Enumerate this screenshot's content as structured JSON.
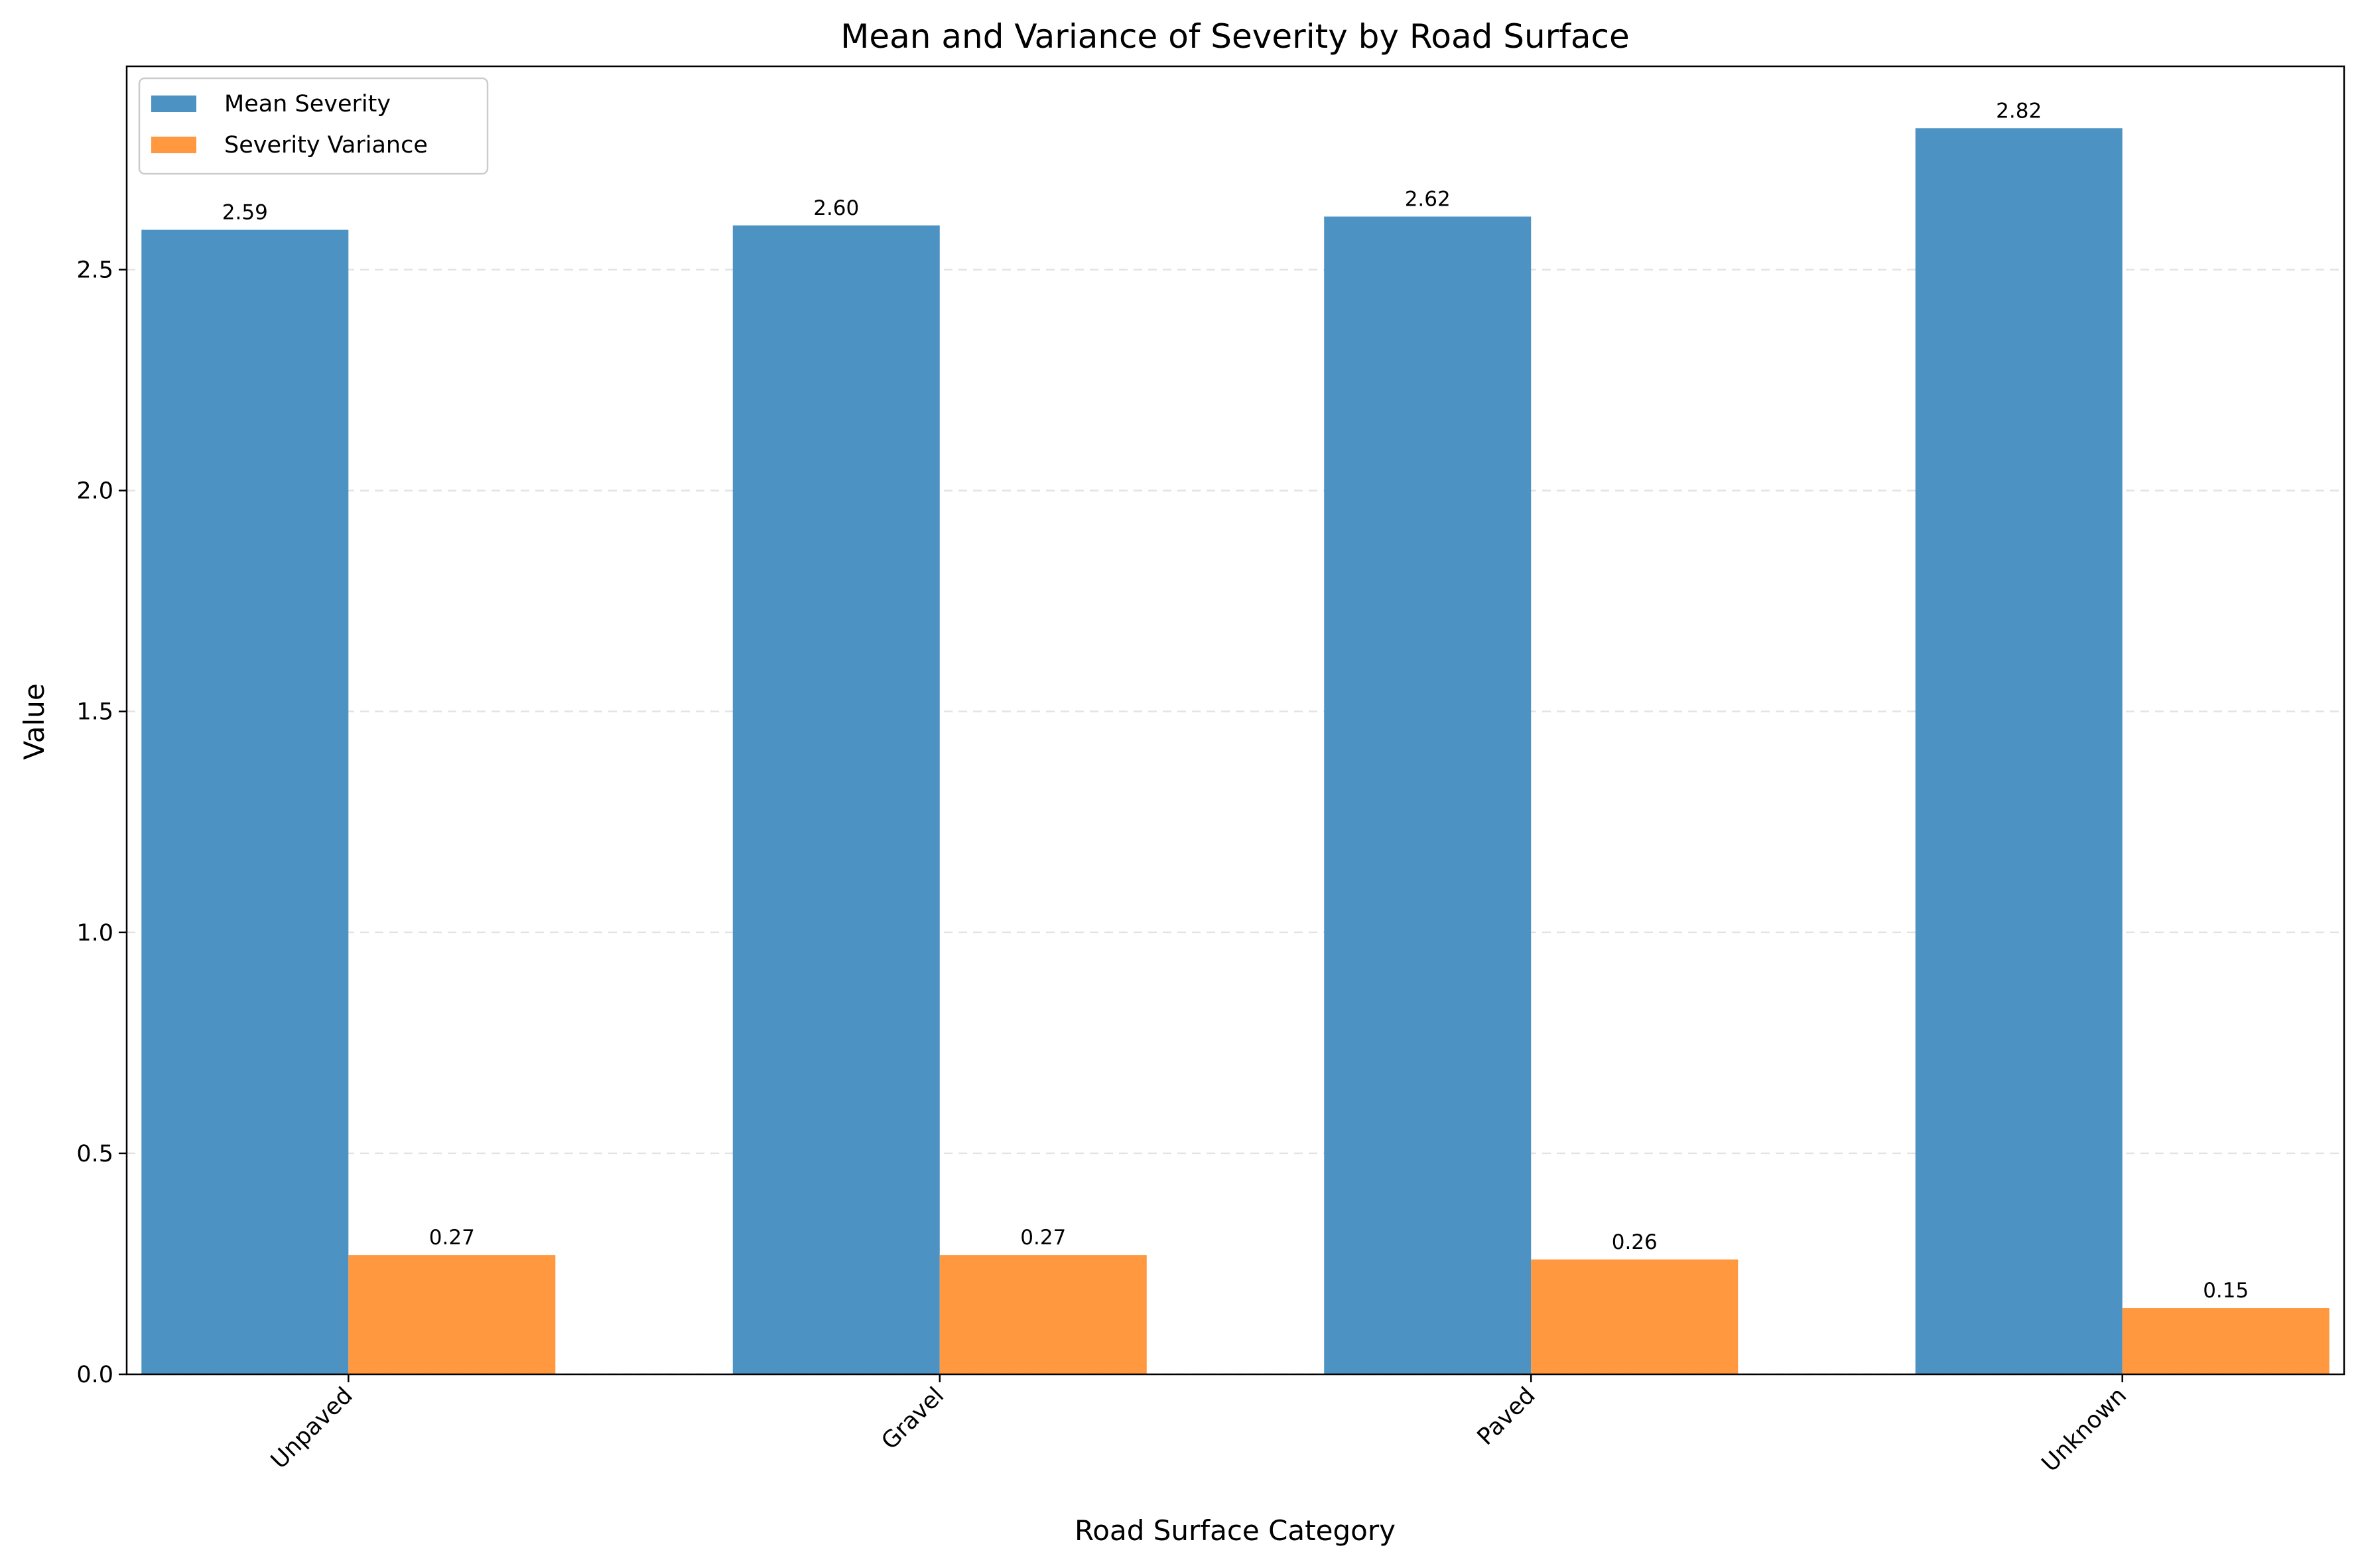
{
  "chart_data": {
    "type": "bar",
    "title": "Mean and Variance of Severity by Road Surface",
    "xlabel": "Road Surface Category",
    "ylabel": "Value",
    "categories": [
      "Unpaved",
      "Gravel",
      "Paved",
      "Unknown"
    ],
    "series": [
      {
        "name": "Mean Severity",
        "values": [
          2.59,
          2.6,
          2.62,
          2.82
        ],
        "labels": [
          "2.59",
          "2.60",
          "2.62",
          "2.82"
        ],
        "color": "#4c92c3"
      },
      {
        "name": "Severity Variance",
        "values": [
          0.27,
          0.27,
          0.26,
          0.15
        ],
        "labels": [
          "0.27",
          "0.27",
          "0.26",
          "0.15"
        ],
        "color": "#ff983e"
      }
    ],
    "ylim": [
      0,
      2.96
    ],
    "yticks": [
      0.0,
      0.5,
      1.0,
      1.5,
      2.0,
      2.5
    ],
    "ytick_labels": [
      "0.0",
      "0.5",
      "1.0",
      "1.5",
      "2.0",
      "2.5"
    ],
    "grid": "y-dashed",
    "legend_position": "top-left",
    "xtick_rotation": -45
  }
}
